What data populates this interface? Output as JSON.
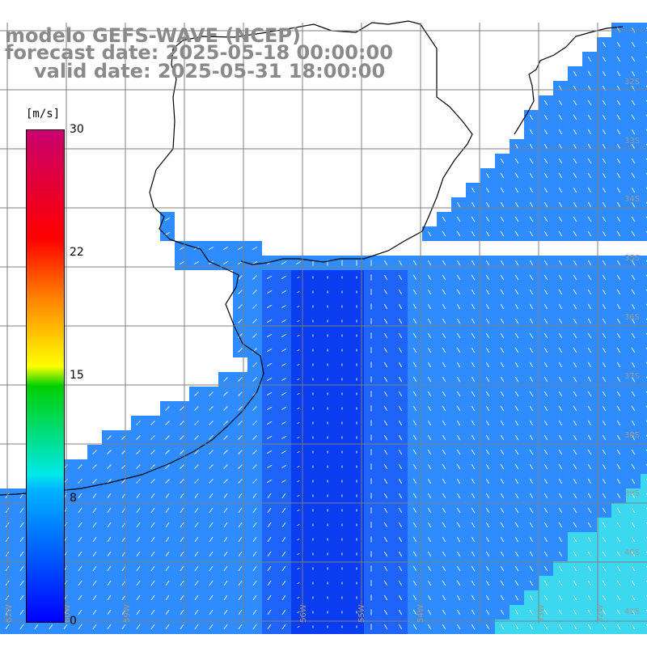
{
  "header": {
    "model": "modelo GEFS-WAVE (NCEP)",
    "forecast": "forecast date: 2025-05-18 00:00:00",
    "valid": "valid date: 2025-05-31 18:00:00"
  },
  "colorbar": {
    "unit": "[m/s]",
    "ticks": [
      "30",
      "22",
      "15",
      "8",
      "0"
    ],
    "colors": [
      "#0000ff",
      "#00b4ff",
      "#00e8e8",
      "#00d000",
      "#ffff00",
      "#ff8000",
      "#ff0000",
      "#c8006e"
    ]
  },
  "map": {
    "lon_labels": [
      "61W",
      "60W",
      "59W",
      "56W",
      "55W",
      "54W",
      "53W",
      "52W"
    ],
    "lat_labels": [
      "32S",
      "33S",
      "34S",
      "35S",
      "36S",
      "37S",
      "38S",
      "39S",
      "40S",
      "41S"
    ],
    "sea_colors": [
      "#0a3cf0",
      "#1e64f8",
      "#2e8cff",
      "#39b4ff",
      "#3cd8f0"
    ]
  }
}
